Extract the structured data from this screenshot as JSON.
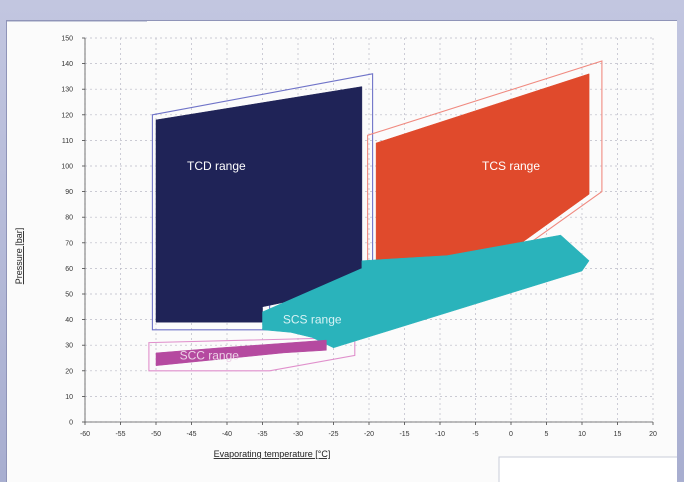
{
  "chart_data": {
    "type": "area",
    "title": "",
    "xlabel": "Evaporating temperature [°C]",
    "ylabel": "Pressure [bar]",
    "xlim": [
      -60,
      20
    ],
    "ylim": [
      0,
      150
    ],
    "x_ticks": [
      -60,
      -55,
      -50,
      -45,
      -40,
      -35,
      -30,
      -25,
      -20,
      -15,
      -10,
      -5,
      0,
      5,
      10,
      15,
      20
    ],
    "y_ticks": [
      0,
      10,
      20,
      30,
      40,
      50,
      60,
      70,
      80,
      90,
      100,
      110,
      120,
      130,
      140,
      150
    ],
    "grid": true,
    "regions": [
      {
        "name": "TCD range",
        "color": "#1f2357",
        "outline_color": "#6f73c8",
        "label_x": -41.5,
        "label_y": 100,
        "label_color": "#ffffff",
        "points": [
          [
            -50,
            118
          ],
          [
            -21,
            131
          ],
          [
            -21,
            53
          ],
          [
            -35,
            45
          ],
          [
            -35,
            39
          ],
          [
            -50,
            39
          ]
        ],
        "outline": [
          [
            -50.5,
            120
          ],
          [
            -19.5,
            136
          ],
          [
            -19.5,
            55
          ],
          [
            -34,
            46.5
          ],
          [
            -34,
            36
          ],
          [
            -50.5,
            36
          ]
        ]
      },
      {
        "name": "TCS range",
        "color": "#e04a2c",
        "outline_color": "#f08a80",
        "label_x": 0,
        "label_y": 100,
        "label_color": "#ffffff",
        "points": [
          [
            -19,
            109
          ],
          [
            11,
            136
          ],
          [
            11,
            89
          ],
          [
            -12,
            43
          ],
          [
            -19,
            43
          ]
        ],
        "outline": [
          [
            -20.2,
            112
          ],
          [
            12.8,
            141
          ],
          [
            12.8,
            90
          ],
          [
            -12.5,
            40
          ],
          [
            -20.2,
            40
          ]
        ]
      },
      {
        "name": "SCS range",
        "color": "#2ab3bb",
        "outline_color": "#8fd8dc",
        "label_x": -28,
        "label_y": 40,
        "label_color": "#d8f2f4",
        "points": [
          [
            -35,
            36
          ],
          [
            -35,
            43
          ],
          [
            -21,
            60
          ],
          [
            -21,
            63
          ],
          [
            -9,
            65
          ],
          [
            7,
            73
          ],
          [
            11,
            63
          ],
          [
            10,
            59
          ],
          [
            -25,
            29
          ],
          [
            -28,
            33
          ],
          [
            -31,
            35
          ]
        ]
      },
      {
        "name": "SCC range",
        "color": "#b54aa0",
        "outline_color": "#e090cc",
        "label_x": -42.5,
        "label_y": 26,
        "label_color": "#ecd2e6",
        "points": [
          [
            -50,
            22
          ],
          [
            -50,
            27
          ],
          [
            -41,
            29
          ],
          [
            -26,
            32
          ],
          [
            -26,
            28
          ],
          [
            -32,
            27
          ],
          [
            -50,
            22
          ]
        ],
        "outline": [
          [
            -51,
            20
          ],
          [
            -51,
            31
          ],
          [
            -22,
            33
          ],
          [
            -22,
            26
          ],
          [
            -34,
            20
          ]
        ]
      }
    ]
  }
}
